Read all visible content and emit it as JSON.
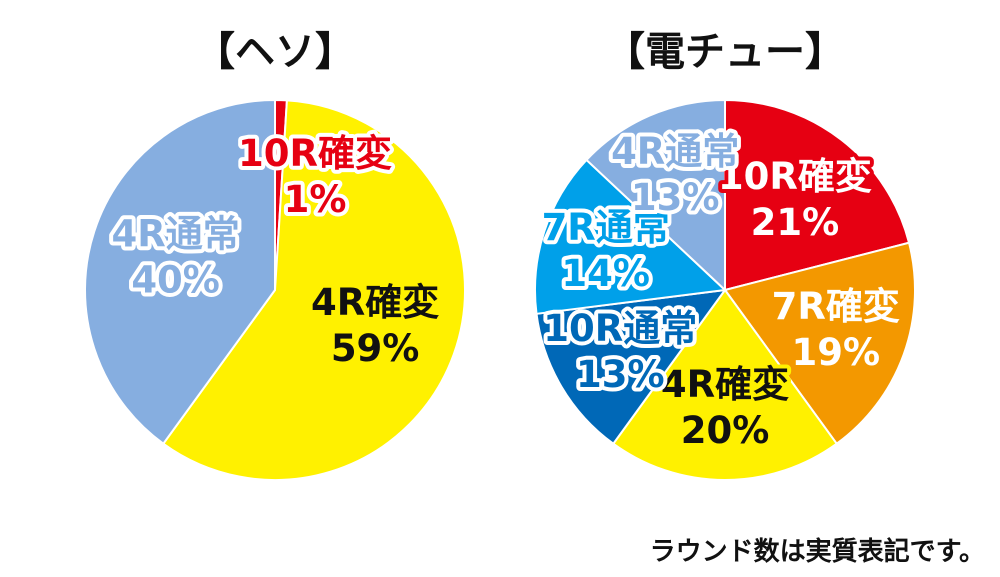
{
  "chart_data": [
    {
      "type": "pie",
      "title": "【ヘソ】",
      "slices": [
        {
          "label": "10R確変",
          "value": 1,
          "value_label": "1%",
          "color": "#e60012",
          "text_color": "#e60012",
          "outline_color": "#ffffff"
        },
        {
          "label": "4R確変",
          "value": 59,
          "value_label": "59%",
          "color": "#fff100",
          "text_color": "#111111",
          "outline_color": "#fff100"
        },
        {
          "label": "4R通常",
          "value": 40,
          "value_label": "40%",
          "color": "#86aee0",
          "text_color": "#86aee0",
          "outline_color": "#ffffff"
        }
      ]
    },
    {
      "type": "pie",
      "title": "【電チュー】",
      "slices": [
        {
          "label": "10R確変",
          "value": 21,
          "value_label": "21%",
          "color": "#e60012",
          "text_color": "#ffffff",
          "outline_color": "#e60012"
        },
        {
          "label": "7R確変",
          "value": 19,
          "value_label": "19%",
          "color": "#f39800",
          "text_color": "#ffffff",
          "outline_color": "#f39800"
        },
        {
          "label": "4R確変",
          "value": 20,
          "value_label": "20%",
          "color": "#fff100",
          "text_color": "#111111",
          "outline_color": "#fff100"
        },
        {
          "label": "10R通常",
          "value": 13,
          "value_label": "13%",
          "color": "#0068b7",
          "text_color": "#0068b7",
          "outline_color": "#ffffff"
        },
        {
          "label": "7R通常",
          "value": 14,
          "value_label": "14%",
          "color": "#00a0e9",
          "text_color": "#00a0e9",
          "outline_color": "#ffffff"
        },
        {
          "label": "4R通常",
          "value": 13,
          "value_label": "13%",
          "color": "#86aee0",
          "text_color": "#86aee0",
          "outline_color": "#ffffff"
        }
      ]
    }
  ],
  "footnote": "ラウンド数は実質表記です。"
}
